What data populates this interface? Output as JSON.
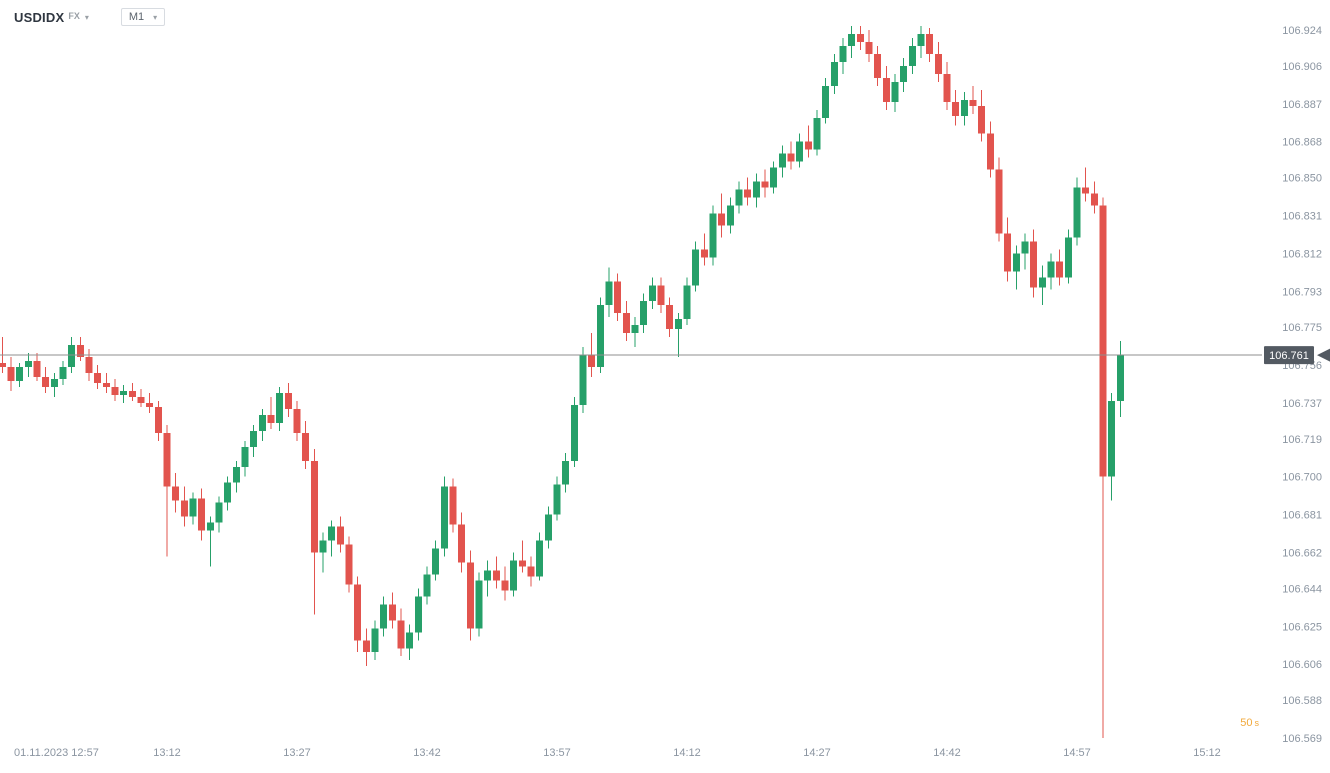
{
  "header": {
    "symbol": "USDIDX",
    "market": "FX",
    "timeframe": "M1"
  },
  "current_price": {
    "value": "106.761",
    "price": 106.761
  },
  "countdown": {
    "value": "50",
    "unit": "s"
  },
  "price_axis": {
    "labels": [
      "106.924",
      "106.906",
      "106.887",
      "106.868",
      "106.850",
      "106.831",
      "106.812",
      "106.793",
      "106.775",
      "106.756",
      "106.737",
      "106.719",
      "106.700",
      "106.681",
      "106.662",
      "106.644",
      "106.625",
      "106.606",
      "106.588",
      "106.569"
    ]
  },
  "time_axis": {
    "labels": [
      {
        "label": "01.11.2023 12:57",
        "time": "12:57"
      },
      {
        "label": "13:12",
        "time": "13:12"
      },
      {
        "label": "13:27",
        "time": "13:27"
      },
      {
        "label": "13:42",
        "time": "13:42"
      },
      {
        "label": "13:57",
        "time": "13:57"
      },
      {
        "label": "14:12",
        "time": "14:12"
      },
      {
        "label": "14:27",
        "time": "14:27"
      },
      {
        "label": "14:42",
        "time": "14:42"
      },
      {
        "label": "14:57",
        "time": "14:57"
      },
      {
        "label": "15:12",
        "time": "15:12"
      }
    ]
  },
  "colors": {
    "up": "#26a069",
    "down": "#e2544e",
    "axis_text": "#8b95a1",
    "price_line": "#8f8f8f",
    "tag_bg": "#535a62",
    "tag_text": "#ffffff",
    "countdown": "#f2a93b"
  },
  "chart_data": {
    "type": "candlestick",
    "symbol": "USDIDX",
    "timeframe": "M1",
    "date": "01.11.2023",
    "price_range": [
      106.569,
      106.924
    ],
    "current_price": 106.761,
    "columns": [
      "time",
      "open",
      "high",
      "low",
      "close"
    ],
    "candles": [
      [
        "12:53",
        106.757,
        106.77,
        106.752,
        106.755
      ],
      [
        "12:54",
        106.755,
        106.76,
        106.743,
        106.748
      ],
      [
        "12:55",
        106.748,
        106.757,
        106.745,
        106.755
      ],
      [
        "12:56",
        106.755,
        106.762,
        106.75,
        106.758
      ],
      [
        "12:57",
        106.758,
        106.762,
        106.748,
        106.75
      ],
      [
        "12:58",
        106.75,
        106.755,
        106.742,
        106.745
      ],
      [
        "12:59",
        106.745,
        106.752,
        106.74,
        106.749
      ],
      [
        "13:00",
        106.749,
        106.758,
        106.746,
        106.755
      ],
      [
        "13:01",
        106.755,
        106.77,
        106.752,
        106.766
      ],
      [
        "13:02",
        106.766,
        106.77,
        106.758,
        106.76
      ],
      [
        "13:03",
        106.76,
        106.764,
        106.748,
        106.752
      ],
      [
        "13:04",
        106.752,
        106.756,
        106.744,
        106.747
      ],
      [
        "13:05",
        106.747,
        106.752,
        106.742,
        106.745
      ],
      [
        "13:06",
        106.745,
        106.749,
        106.738,
        106.741
      ],
      [
        "13:07",
        106.741,
        106.746,
        106.737,
        106.743
      ],
      [
        "13:08",
        106.743,
        106.747,
        106.738,
        106.74
      ],
      [
        "13:09",
        106.74,
        106.744,
        106.735,
        106.737
      ],
      [
        "13:10",
        106.737,
        106.742,
        106.732,
        106.735
      ],
      [
        "13:11",
        106.735,
        106.738,
        106.718,
        106.722
      ],
      [
        "13:12",
        106.722,
        106.726,
        106.66,
        106.695
      ],
      [
        "13:13",
        106.695,
        106.702,
        106.682,
        106.688
      ],
      [
        "13:14",
        106.688,
        106.695,
        106.675,
        106.68
      ],
      [
        "13:15",
        106.68,
        106.692,
        106.676,
        106.689
      ],
      [
        "13:16",
        106.689,
        106.694,
        106.668,
        106.673
      ],
      [
        "13:17",
        106.673,
        106.68,
        106.655,
        106.677
      ],
      [
        "13:18",
        106.677,
        106.69,
        106.672,
        106.687
      ],
      [
        "13:19",
        106.687,
        106.7,
        106.683,
        106.697
      ],
      [
        "13:20",
        106.697,
        106.708,
        106.692,
        106.705
      ],
      [
        "13:21",
        106.705,
        106.718,
        106.7,
        106.715
      ],
      [
        "13:22",
        106.715,
        106.726,
        106.71,
        106.723
      ],
      [
        "13:23",
        106.723,
        106.734,
        106.718,
        106.731
      ],
      [
        "13:24",
        106.731,
        106.74,
        106.724,
        106.727
      ],
      [
        "13:25",
        106.727,
        106.745,
        106.723,
        106.742
      ],
      [
        "13:26",
        106.742,
        106.747,
        106.73,
        106.734
      ],
      [
        "13:27",
        106.734,
        106.738,
        106.718,
        106.722
      ],
      [
        "13:28",
        106.722,
        106.728,
        106.704,
        106.708
      ],
      [
        "13:29",
        106.708,
        106.714,
        106.631,
        106.662
      ],
      [
        "13:30",
        106.662,
        106.672,
        106.652,
        106.668
      ],
      [
        "13:31",
        106.668,
        106.678,
        106.66,
        106.675
      ],
      [
        "13:32",
        106.675,
        106.68,
        106.662,
        106.666
      ],
      [
        "13:33",
        106.666,
        106.67,
        106.642,
        106.646
      ],
      [
        "13:34",
        106.646,
        106.65,
        106.612,
        106.618
      ],
      [
        "13:35",
        106.618,
        106.624,
        106.605,
        106.612
      ],
      [
        "13:36",
        106.612,
        106.628,
        106.608,
        106.624
      ],
      [
        "13:37",
        106.624,
        106.64,
        106.62,
        106.636
      ],
      [
        "13:38",
        106.636,
        106.642,
        106.624,
        106.628
      ],
      [
        "13:39",
        106.628,
        106.634,
        106.61,
        106.614
      ],
      [
        "13:40",
        106.614,
        106.626,
        106.608,
        106.622
      ],
      [
        "13:41",
        106.622,
        106.644,
        106.618,
        106.64
      ],
      [
        "13:42",
        106.64,
        106.655,
        106.636,
        106.651
      ],
      [
        "13:43",
        106.651,
        106.668,
        106.648,
        106.664
      ],
      [
        "13:44",
        106.664,
        106.7,
        106.66,
        106.695
      ],
      [
        "13:45",
        106.695,
        106.699,
        106.672,
        106.676
      ],
      [
        "13:46",
        106.676,
        106.682,
        106.652,
        106.657
      ],
      [
        "13:47",
        106.657,
        106.663,
        106.618,
        106.624
      ],
      [
        "13:48",
        106.624,
        106.652,
        106.62,
        106.648
      ],
      [
        "13:49",
        106.648,
        106.658,
        106.64,
        106.653
      ],
      [
        "13:50",
        106.653,
        106.66,
        106.644,
        106.648
      ],
      [
        "13:51",
        106.648,
        106.655,
        106.638,
        106.643
      ],
      [
        "13:52",
        106.643,
        106.662,
        106.64,
        106.658
      ],
      [
        "13:53",
        106.658,
        106.668,
        106.652,
        106.655
      ],
      [
        "13:54",
        106.655,
        106.66,
        106.645,
        106.65
      ],
      [
        "13:55",
        106.65,
        106.672,
        106.648,
        106.668
      ],
      [
        "13:56",
        106.668,
        106.685,
        106.664,
        106.681
      ],
      [
        "13:57",
        106.681,
        106.7,
        106.678,
        106.696
      ],
      [
        "13:58",
        106.696,
        106.712,
        106.692,
        106.708
      ],
      [
        "13:59",
        106.708,
        106.74,
        106.705,
        106.736
      ],
      [
        "14:00",
        106.736,
        106.765,
        106.732,
        106.761
      ],
      [
        "14:01",
        106.761,
        106.772,
        106.75,
        106.755
      ],
      [
        "14:02",
        106.755,
        106.79,
        106.752,
        106.786
      ],
      [
        "14:03",
        106.786,
        106.805,
        106.78,
        106.798
      ],
      [
        "14:04",
        106.798,
        106.802,
        106.778,
        106.782
      ],
      [
        "14:05",
        106.782,
        106.788,
        106.768,
        106.772
      ],
      [
        "14:06",
        106.772,
        106.78,
        106.765,
        106.776
      ],
      [
        "14:07",
        106.776,
        106.792,
        106.772,
        106.788
      ],
      [
        "14:08",
        106.788,
        106.8,
        106.784,
        106.796
      ],
      [
        "14:09",
        106.796,
        106.8,
        106.782,
        106.786
      ],
      [
        "14:10",
        106.786,
        106.79,
        106.77,
        106.774
      ],
      [
        "14:11",
        106.774,
        106.782,
        106.76,
        106.779
      ],
      [
        "14:12",
        106.779,
        106.8,
        106.776,
        106.796
      ],
      [
        "14:13",
        106.796,
        106.818,
        106.793,
        106.814
      ],
      [
        "14:14",
        106.814,
        106.822,
        106.806,
        106.81
      ],
      [
        "14:15",
        106.81,
        106.836,
        106.806,
        106.832
      ],
      [
        "14:16",
        106.832,
        106.842,
        106.82,
        106.826
      ],
      [
        "14:17",
        106.826,
        106.84,
        106.822,
        106.836
      ],
      [
        "14:18",
        106.836,
        106.848,
        106.832,
        106.844
      ],
      [
        "14:19",
        106.844,
        106.85,
        106.836,
        106.84
      ],
      [
        "14:20",
        106.84,
        106.852,
        106.835,
        106.848
      ],
      [
        "14:21",
        106.848,
        106.854,
        106.84,
        106.845
      ],
      [
        "14:22",
        106.845,
        106.858,
        106.842,
        106.855
      ],
      [
        "14:23",
        106.855,
        106.866,
        106.85,
        106.862
      ],
      [
        "14:24",
        106.862,
        106.868,
        106.854,
        106.858
      ],
      [
        "14:25",
        106.858,
        106.872,
        106.855,
        106.868
      ],
      [
        "14:26",
        106.868,
        106.876,
        106.86,
        106.864
      ],
      [
        "14:27",
        106.864,
        106.884,
        106.861,
        106.88
      ],
      [
        "14:28",
        106.88,
        106.9,
        106.877,
        106.896
      ],
      [
        "14:29",
        106.896,
        106.912,
        106.892,
        106.908
      ],
      [
        "14:30",
        106.908,
        106.92,
        106.902,
        106.916
      ],
      [
        "14:31",
        106.916,
        106.926,
        106.91,
        106.922
      ],
      [
        "14:32",
        106.922,
        106.926,
        106.914,
        106.918
      ],
      [
        "14:33",
        106.918,
        106.924,
        106.908,
        106.912
      ],
      [
        "14:34",
        106.912,
        106.916,
        106.896,
        106.9
      ],
      [
        "14:35",
        106.9,
        106.906,
        106.884,
        106.888
      ],
      [
        "14:36",
        106.888,
        106.902,
        106.883,
        106.898
      ],
      [
        "14:37",
        106.898,
        106.91,
        106.893,
        106.906
      ],
      [
        "14:38",
        106.906,
        106.92,
        106.902,
        106.916
      ],
      [
        "14:39",
        106.916,
        106.926,
        106.91,
        106.922
      ],
      [
        "14:40",
        106.922,
        106.925,
        106.908,
        106.912
      ],
      [
        "14:41",
        106.912,
        106.918,
        106.898,
        106.902
      ],
      [
        "14:42",
        106.902,
        106.908,
        106.884,
        106.888
      ],
      [
        "14:43",
        106.888,
        106.894,
        106.876,
        106.881
      ],
      [
        "14:44",
        106.881,
        106.893,
        106.876,
        106.889
      ],
      [
        "14:45",
        106.889,
        106.896,
        106.882,
        106.886
      ],
      [
        "14:46",
        106.886,
        106.894,
        106.868,
        106.872
      ],
      [
        "14:47",
        106.872,
        106.878,
        106.85,
        106.854
      ],
      [
        "14:48",
        106.854,
        106.86,
        106.818,
        106.822
      ],
      [
        "14:49",
        106.822,
        106.83,
        106.798,
        106.803
      ],
      [
        "14:50",
        106.803,
        106.816,
        106.794,
        106.812
      ],
      [
        "14:51",
        106.812,
        106.822,
        106.804,
        106.818
      ],
      [
        "14:52",
        106.818,
        106.824,
        106.79,
        106.795
      ],
      [
        "14:53",
        106.795,
        106.806,
        106.786,
        106.8
      ],
      [
        "14:54",
        106.8,
        106.812,
        106.794,
        106.808
      ],
      [
        "14:55",
        106.808,
        106.814,
        106.796,
        106.8
      ],
      [
        "14:56",
        106.8,
        106.824,
        106.797,
        106.82
      ],
      [
        "14:57",
        106.82,
        106.85,
        106.816,
        106.845
      ],
      [
        "14:58",
        106.845,
        106.855,
        106.838,
        106.842
      ],
      [
        "14:59",
        106.842,
        106.848,
        106.832,
        106.836
      ],
      [
        "15:00",
        106.836,
        106.84,
        106.569,
        106.7
      ],
      [
        "15:01",
        106.7,
        106.742,
        106.688,
        106.738
      ],
      [
        "15:02",
        106.738,
        106.768,
        106.73,
        106.761
      ]
    ]
  }
}
